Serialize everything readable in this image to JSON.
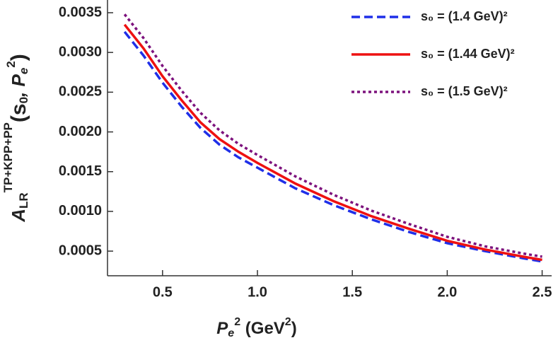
{
  "chart_data": {
    "type": "line",
    "x_label": [
      "P",
      "e",
      "2",
      " (GeV",
      "2",
      ")"
    ],
    "y_label": [
      "A",
      "LR",
      "TP+KPP+PP",
      "(s",
      "0",
      ", P",
      "e",
      "2",
      ")"
    ],
    "x": [
      0.3,
      0.4,
      0.5,
      0.6,
      0.7,
      0.8,
      0.9,
      1.0,
      1.2,
      1.4,
      1.6,
      1.8,
      2.0,
      2.2,
      2.4,
      2.5
    ],
    "series": [
      {
        "name": "s₀ = (1.4 GeV)²",
        "color": "#1f2fe8",
        "dash": "dashed",
        "values": [
          0.00326,
          0.00296,
          0.00262,
          0.00232,
          0.00205,
          0.00184,
          0.00168,
          0.00155,
          0.00129,
          0.00108,
          0.0009,
          0.00074,
          0.0006,
          0.0005,
          0.00041,
          0.00037
        ]
      },
      {
        "name": "s₀ = (1.44 GeV)²",
        "color": "#ee1111",
        "dash": "solid",
        "values": [
          0.00335,
          0.00305,
          0.0027,
          0.0024,
          0.00212,
          0.00191,
          0.00175,
          0.00161,
          0.00135,
          0.00113,
          0.00094,
          0.00078,
          0.00063,
          0.00052,
          0.00043,
          0.00039
        ]
      },
      {
        "name": "s₀ = (1.5 GeV)²",
        "color": "#7d127d",
        "dash": "dotted",
        "values": [
          0.00348,
          0.00318,
          0.00283,
          0.00252,
          0.00224,
          0.00202,
          0.00185,
          0.00171,
          0.00144,
          0.00121,
          0.00101,
          0.00084,
          0.00068,
          0.00056,
          0.00047,
          0.00043
        ]
      }
    ],
    "xlim": [
      0.21,
      2.55
    ],
    "ylim": [
      0.00019,
      0.00366
    ],
    "xticks": [
      0.5,
      {
        "value": 1,
        "label": "1.0"
      },
      1.5,
      {
        "value": 2,
        "label": "2.0"
      },
      2.5
    ],
    "yticks": [
      0.0005,
      {
        "value": 0.001,
        "label": "0.0010"
      },
      0.0015,
      {
        "value": 0.002,
        "label": "0.0020"
      },
      0.0025,
      {
        "value": 0.003,
        "label": "0.0030"
      },
      0.0035
    ],
    "legend": "upper right",
    "grid": false
  }
}
